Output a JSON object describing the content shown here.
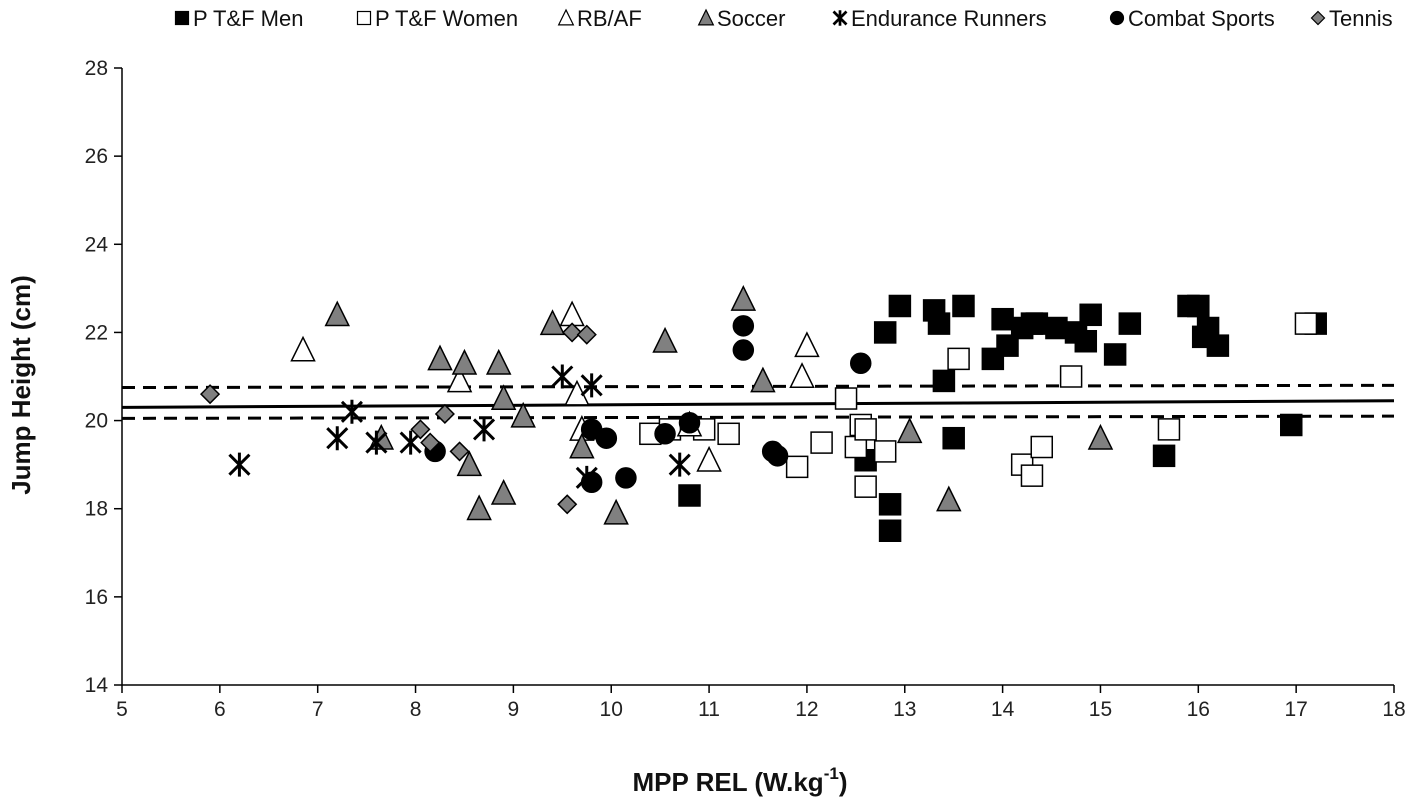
{
  "chart_data": {
    "type": "scatter",
    "xlabel": "MPP REL (W.kg",
    "xlabel_sup": "-1",
    "xlabel_end": ")",
    "ylabel": "Jump Height (cm)",
    "xlim": [
      5,
      18
    ],
    "ylim": [
      14,
      28
    ],
    "x_ticks": [
      "5",
      "6",
      "7",
      "8",
      "9",
      "10",
      "11",
      "12",
      "13",
      "14",
      "15",
      "16",
      "17",
      "18"
    ],
    "y_ticks": [
      "14",
      "16",
      "18",
      "20",
      "22",
      "24",
      "26",
      "28"
    ],
    "legend_position": "top",
    "grid": false,
    "series": [
      {
        "name": "P T&F Men",
        "marker": "square",
        "fill": "#000000",
        "stroke": "#000000",
        "points": [
          [
            10.8,
            18.3
          ],
          [
            12.6,
            19.1
          ],
          [
            12.8,
            22.0
          ],
          [
            12.85,
            18.1
          ],
          [
            12.85,
            17.5
          ],
          [
            12.95,
            22.6
          ],
          [
            13.3,
            22.5
          ],
          [
            13.35,
            22.2
          ],
          [
            13.4,
            20.9
          ],
          [
            13.5,
            19.6
          ],
          [
            13.6,
            22.6
          ],
          [
            13.9,
            21.4
          ],
          [
            14.0,
            22.3
          ],
          [
            14.05,
            21.7
          ],
          [
            14.2,
            22.1
          ],
          [
            14.3,
            22.2
          ],
          [
            14.35,
            22.2
          ],
          [
            14.55,
            22.1
          ],
          [
            14.75,
            22.0
          ],
          [
            14.85,
            21.8
          ],
          [
            14.9,
            22.4
          ],
          [
            15.15,
            21.5
          ],
          [
            15.3,
            22.2
          ],
          [
            15.65,
            19.2
          ],
          [
            15.9,
            22.6
          ],
          [
            16.0,
            22.6
          ],
          [
            16.05,
            21.9
          ],
          [
            16.1,
            22.1
          ],
          [
            16.2,
            21.7
          ],
          [
            16.95,
            19.9
          ],
          [
            17.2,
            22.2
          ]
        ]
      },
      {
        "name": "P T&F Women",
        "marker": "square",
        "fill": "#ffffff",
        "stroke": "#000000",
        "points": [
          [
            10.4,
            19.7
          ],
          [
            10.6,
            19.8
          ],
          [
            10.95,
            19.8
          ],
          [
            11.2,
            19.7
          ],
          [
            11.9,
            18.95
          ],
          [
            12.15,
            19.5
          ],
          [
            12.4,
            20.5
          ],
          [
            12.5,
            19.4
          ],
          [
            12.55,
            19.9
          ],
          [
            12.6,
            19.8
          ],
          [
            12.6,
            18.5
          ],
          [
            12.8,
            19.3
          ],
          [
            13.55,
            21.4
          ],
          [
            14.2,
            19.0
          ],
          [
            14.3,
            18.75
          ],
          [
            14.4,
            19.4
          ],
          [
            14.7,
            21.0
          ],
          [
            15.7,
            19.8
          ],
          [
            17.1,
            22.2
          ]
        ]
      },
      {
        "name": "RB/AF",
        "marker": "triangle",
        "fill": "#ffffff",
        "stroke": "#000000",
        "points": [
          [
            6.85,
            21.6
          ],
          [
            8.45,
            20.9
          ],
          [
            9.6,
            22.4
          ],
          [
            9.65,
            20.6
          ],
          [
            9.7,
            19.8
          ],
          [
            10.8,
            19.9
          ],
          [
            11.0,
            19.1
          ],
          [
            11.95,
            21.0
          ],
          [
            12.0,
            21.7
          ]
        ]
      },
      {
        "name": "Soccer",
        "marker": "triangle",
        "fill": "#808080",
        "stroke": "#000000",
        "points": [
          [
            7.2,
            22.4
          ],
          [
            7.65,
            19.6
          ],
          [
            8.25,
            21.4
          ],
          [
            8.5,
            21.3
          ],
          [
            8.55,
            19.0
          ],
          [
            8.65,
            18.0
          ],
          [
            8.85,
            21.3
          ],
          [
            8.9,
            18.35
          ],
          [
            8.9,
            20.5
          ],
          [
            9.1,
            20.1
          ],
          [
            9.4,
            22.2
          ],
          [
            9.7,
            19.4
          ],
          [
            10.05,
            17.9
          ],
          [
            10.55,
            21.8
          ],
          [
            11.35,
            22.75
          ],
          [
            11.55,
            20.9
          ],
          [
            13.05,
            19.75
          ],
          [
            13.45,
            18.2
          ],
          [
            15.0,
            19.6
          ]
        ]
      },
      {
        "name": "Endurance Runners",
        "marker": "star",
        "fill": "#000000",
        "stroke": "#000000",
        "points": [
          [
            6.2,
            19.0
          ],
          [
            7.2,
            19.6
          ],
          [
            7.35,
            20.2
          ],
          [
            7.6,
            19.5
          ],
          [
            7.95,
            19.5
          ],
          [
            8.7,
            19.8
          ],
          [
            9.5,
            21.0
          ],
          [
            9.75,
            18.7
          ],
          [
            9.8,
            20.8
          ],
          [
            10.7,
            19.0
          ]
        ]
      },
      {
        "name": "Combat Sports",
        "marker": "circle",
        "fill": "#000000",
        "stroke": "#000000",
        "points": [
          [
            8.2,
            19.3
          ],
          [
            9.8,
            19.8
          ],
          [
            9.8,
            18.6
          ],
          [
            9.95,
            19.6
          ],
          [
            10.15,
            18.7
          ],
          [
            10.55,
            19.7
          ],
          [
            10.8,
            19.95
          ],
          [
            11.35,
            22.15
          ],
          [
            11.35,
            21.6
          ],
          [
            11.65,
            19.3
          ],
          [
            11.7,
            19.2
          ],
          [
            12.55,
            21.3
          ]
        ]
      },
      {
        "name": "Tennis",
        "marker": "diamond",
        "fill": "#808080",
        "stroke": "#000000",
        "points": [
          [
            5.9,
            20.6
          ],
          [
            8.05,
            19.8
          ],
          [
            8.15,
            19.5
          ],
          [
            8.3,
            20.15
          ],
          [
            8.45,
            19.3
          ],
          [
            9.55,
            18.1
          ],
          [
            9.6,
            22.0
          ],
          [
            9.75,
            21.95
          ]
        ]
      }
    ],
    "lines": [
      {
        "style": "solid",
        "x": [
          5,
          18
        ],
        "y": [
          20.3,
          20.45
        ]
      },
      {
        "style": "dashed",
        "x": [
          5,
          18
        ],
        "y": [
          20.75,
          20.8
        ]
      },
      {
        "style": "dashed",
        "x": [
          5,
          18
        ],
        "y": [
          20.05,
          20.1
        ]
      }
    ]
  }
}
